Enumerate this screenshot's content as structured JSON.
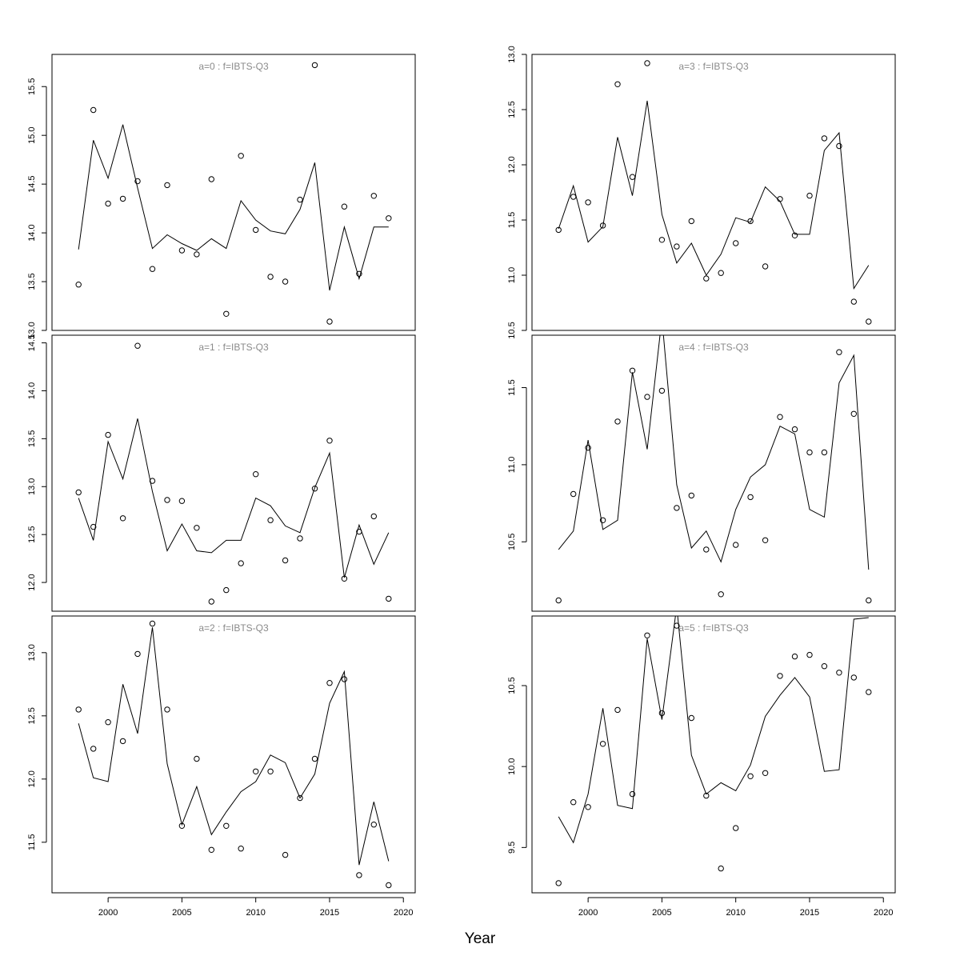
{
  "figure": {
    "xlabel": "Year"
  },
  "chart_data": [
    {
      "type": "line",
      "title": "a=0  :  f=IBTS-Q3",
      "x": [
        1998,
        1999,
        2000,
        2001,
        2002,
        2003,
        2004,
        2005,
        2006,
        2007,
        2008,
        2009,
        2010,
        2011,
        2012,
        2013,
        2014,
        2015,
        2016,
        2017,
        2018,
        2019
      ],
      "series": [
        {
          "style": "line",
          "values": [
            13.83,
            14.95,
            14.56,
            15.11,
            14.46,
            13.84,
            13.98,
            13.89,
            13.82,
            13.94,
            13.84,
            14.33,
            14.13,
            14.02,
            13.99,
            14.24,
            14.72,
            13.41,
            14.06,
            13.53,
            14.06,
            14.06
          ]
        },
        {
          "style": "points",
          "values": [
            13.47,
            15.26,
            14.3,
            14.35,
            14.53,
            13.63,
            14.49,
            13.82,
            13.78,
            14.55,
            13.17,
            14.79,
            14.03,
            13.55,
            13.5,
            14.34,
            15.72,
            13.09,
            14.27,
            13.58,
            14.38,
            14.15
          ]
        }
      ],
      "yticks": [
        13.0,
        13.5,
        14.0,
        14.5,
        15.0,
        15.5
      ],
      "ytick_labels": [
        "13.0",
        "13.5",
        "14.0",
        "14.5",
        "15.0",
        "15.5"
      ],
      "ylim": [
        13.0,
        15.83
      ],
      "xlim": [
        1996.2,
        2020.8
      ]
    },
    {
      "type": "line",
      "title": "a=3  :  f=IBTS-Q3",
      "x": [
        1998,
        1999,
        2000,
        2001,
        2002,
        2003,
        2004,
        2005,
        2006,
        2007,
        2008,
        2009,
        2010,
        2011,
        2012,
        2013,
        2014,
        2015,
        2016,
        2017,
        2018,
        2019
      ],
      "series": [
        {
          "style": "line",
          "values": [
            11.42,
            11.81,
            11.3,
            11.44,
            12.25,
            11.72,
            12.58,
            11.55,
            11.11,
            11.29,
            11.0,
            11.19,
            11.52,
            11.48,
            11.8,
            11.67,
            11.37,
            11.37,
            12.13,
            12.29,
            10.88,
            11.09
          ]
        },
        {
          "style": "points",
          "values": [
            11.41,
            11.71,
            11.66,
            11.45,
            12.73,
            11.89,
            12.92,
            11.32,
            11.26,
            11.49,
            10.97,
            11.02,
            11.29,
            11.49,
            11.08,
            11.69,
            11.36,
            11.72,
            12.24,
            12.17,
            10.76,
            10.58
          ]
        }
      ],
      "yticks": [
        10.5,
        11.0,
        11.5,
        12.0,
        12.5,
        13.0
      ],
      "ytick_labels": [
        "10.5",
        "11.0",
        "11.5",
        "12.0",
        "12.5",
        "13.0"
      ],
      "ylim": [
        10.5,
        13.0
      ],
      "xlim": [
        1996.2,
        2020.8
      ]
    },
    {
      "type": "line",
      "title": "a=1  :  f=IBTS-Q3",
      "x": [
        1998,
        1999,
        2000,
        2001,
        2002,
        2003,
        2004,
        2005,
        2006,
        2007,
        2008,
        2009,
        2010,
        2011,
        2012,
        2013,
        2014,
        2015,
        2016,
        2017,
        2018,
        2019
      ],
      "series": [
        {
          "style": "line",
          "values": [
            12.88,
            12.44,
            13.47,
            13.08,
            13.71,
            12.95,
            12.33,
            12.61,
            12.33,
            12.31,
            12.44,
            12.44,
            12.88,
            12.8,
            12.59,
            12.52,
            12.99,
            13.35,
            12.05,
            12.6,
            12.19,
            12.52
          ]
        },
        {
          "style": "points",
          "values": [
            12.94,
            12.58,
            13.54,
            12.67,
            14.47,
            13.06,
            12.86,
            12.85,
            12.57,
            11.8,
            11.92,
            12.2,
            13.13,
            12.65,
            12.23,
            12.46,
            12.98,
            13.48,
            12.04,
            12.53,
            12.69,
            11.83
          ]
        }
      ],
      "yticks": [
        12.0,
        12.5,
        13.0,
        13.5,
        14.0,
        14.5
      ],
      "ytick_labels": [
        "12.0",
        "12.5",
        "13.0",
        "13.5",
        "14.0",
        "14.5"
      ],
      "ylim": [
        11.7,
        14.58
      ],
      "xlim": [
        1996.2,
        2020.8
      ]
    },
    {
      "type": "line",
      "title": "a=4  :  f=IBTS-Q3",
      "x": [
        1998,
        1999,
        2000,
        2001,
        2002,
        2003,
        2004,
        2005,
        2006,
        2007,
        2008,
        2009,
        2010,
        2011,
        2012,
        2013,
        2014,
        2015,
        2016,
        2017,
        2018,
        2019
      ],
      "series": [
        {
          "style": "line",
          "values": [
            10.45,
            10.57,
            11.16,
            10.58,
            10.64,
            11.6,
            11.1,
            11.95,
            10.87,
            10.46,
            10.57,
            10.37,
            10.71,
            10.92,
            11.0,
            11.25,
            11.2,
            10.71,
            10.66,
            11.53,
            11.71,
            10.32
          ]
        },
        {
          "style": "points",
          "values": [
            10.12,
            10.81,
            11.11,
            10.64,
            11.28,
            11.61,
            11.44,
            11.48,
            10.72,
            10.8,
            10.45,
            10.16,
            10.48,
            10.79,
            10.51,
            11.31,
            11.23,
            11.08,
            11.08,
            11.73,
            11.33,
            10.12
          ]
        }
      ],
      "yticks": [
        10.5,
        11.0,
        11.5
      ],
      "ytick_labels": [
        "10.5",
        "11.0",
        "11.5"
      ],
      "ylim": [
        10.05,
        11.84
      ],
      "xlim": [
        1996.2,
        2020.8
      ]
    },
    {
      "type": "line",
      "title": "a=2  :  f=IBTS-Q3",
      "x": [
        1998,
        1999,
        2000,
        2001,
        2002,
        2003,
        2004,
        2005,
        2006,
        2007,
        2008,
        2009,
        2010,
        2011,
        2012,
        2013,
        2014,
        2015,
        2016,
        2017,
        2018,
        2019
      ],
      "series": [
        {
          "style": "line",
          "values": [
            12.44,
            12.01,
            11.98,
            12.75,
            12.36,
            13.2,
            12.12,
            11.64,
            11.94,
            11.56,
            11.74,
            11.9,
            11.98,
            12.19,
            12.13,
            11.85,
            12.04,
            12.6,
            12.85,
            11.32,
            11.82,
            11.35
          ]
        },
        {
          "style": "points",
          "values": [
            12.55,
            12.24,
            12.45,
            12.3,
            12.99,
            13.23,
            12.55,
            11.63,
            12.16,
            11.44,
            11.63,
            11.45,
            12.06,
            12.06,
            11.4,
            11.85,
            12.16,
            12.76,
            12.79,
            11.24,
            11.64,
            11.16
          ]
        }
      ],
      "yticks": [
        11.5,
        12.0,
        12.5,
        13.0
      ],
      "ytick_labels": [
        "11.5",
        "12.0",
        "12.5",
        "13.0"
      ],
      "ylim": [
        11.1,
        13.29
      ],
      "xlim": [
        1996.2,
        2020.8
      ],
      "xticks": [
        2000,
        2005,
        2010,
        2015,
        2020
      ],
      "xtick_labels": [
        "2000",
        "2005",
        "2010",
        "2015",
        "2020"
      ]
    },
    {
      "type": "line",
      "title": "a=5  :  f=IBTS-Q3",
      "x": [
        1998,
        1999,
        2000,
        2001,
        2002,
        2003,
        2004,
        2005,
        2006,
        2007,
        2008,
        2009,
        2010,
        2011,
        2012,
        2013,
        2014,
        2015,
        2016,
        2017,
        2018,
        2019
      ],
      "series": [
        {
          "style": "line",
          "values": [
            9.69,
            9.53,
            9.83,
            10.36,
            9.76,
            9.74,
            10.79,
            10.29,
            10.99,
            10.07,
            9.83,
            9.9,
            9.85,
            10.01,
            10.31,
            10.44,
            10.55,
            10.43,
            9.97,
            9.98,
            10.91,
            10.92
          ]
        },
        {
          "style": "points",
          "values": [
            9.28,
            9.78,
            9.75,
            10.14,
            10.35,
            9.83,
            10.81,
            10.33,
            10.87,
            10.3,
            9.82,
            9.37,
            9.62,
            9.94,
            9.96,
            10.56,
            10.68,
            10.69,
            10.62,
            10.58,
            10.55,
            10.46
          ]
        }
      ],
      "yticks": [
        9.5,
        10.0,
        10.5
      ],
      "ytick_labels": [
        "9.5",
        "10.0",
        "10.5"
      ],
      "ylim": [
        9.22,
        10.93
      ],
      "xlim": [
        1996.2,
        2020.8
      ],
      "xticks": [
        2000,
        2005,
        2010,
        2015,
        2020
      ],
      "xtick_labels": [
        "2000",
        "2005",
        "2010",
        "2015",
        "2020"
      ]
    }
  ]
}
